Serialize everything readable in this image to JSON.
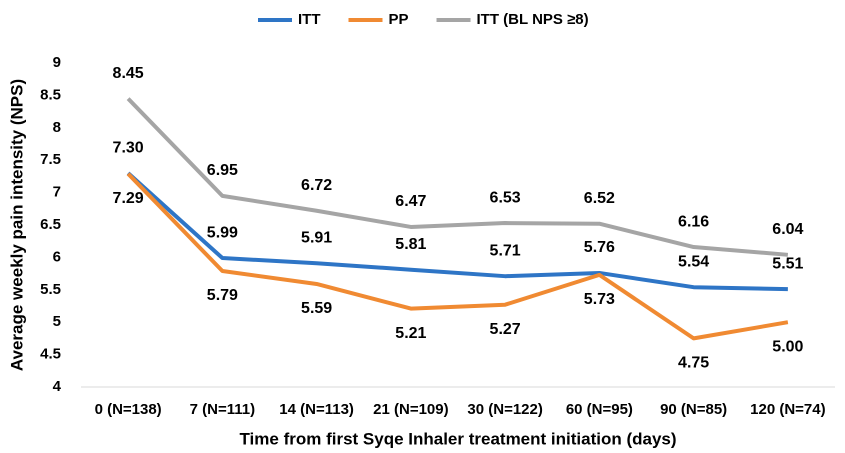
{
  "chart_data": {
    "type": "line",
    "categories": [
      "0 (N=138)",
      "7 (N=111)",
      "14 (N=113)",
      "21 (N=109)",
      "30 (N=122)",
      "60 (N=95)",
      "90 (N=85)",
      "120 (N=74)"
    ],
    "series": [
      {
        "name": "ITT",
        "color": "#2e75c6",
        "values": [
          7.3,
          5.99,
          5.91,
          5.81,
          5.71,
          5.76,
          5.54,
          5.51
        ],
        "value_labels": [
          "7.30",
          "5.99",
          "5.91",
          "5.81",
          "5.71",
          "5.76",
          "5.54",
          "5.51"
        ]
      },
      {
        "name": "PP",
        "color": "#f08a32",
        "values": [
          7.29,
          5.79,
          5.59,
          5.21,
          5.27,
          5.73,
          4.75,
          5.0
        ],
        "value_labels": [
          "7.29",
          "5.79",
          "5.59",
          "5.21",
          "5.27",
          "5.73",
          "4.75",
          "5.00"
        ]
      },
      {
        "name": "ITT (BL NPS ≥8)",
        "color": "#a5a5a5",
        "values": [
          8.45,
          6.95,
          6.72,
          6.47,
          6.53,
          6.52,
          6.16,
          6.04
        ],
        "value_labels": [
          "8.45",
          "6.95",
          "6.72",
          "6.47",
          "6.53",
          "6.52",
          "6.16",
          "6.04"
        ]
      }
    ],
    "xlabel": "Time from first Syqe Inhaler treatment initiation (days)",
    "ylabel": "Average weekly pain intensity (NPS)",
    "ylim": [
      4,
      9
    ],
    "yticks": [
      4,
      4.5,
      5,
      5.5,
      6,
      6.5,
      7,
      7.5,
      8,
      8.5,
      9
    ],
    "grid": false,
    "legend": "top"
  }
}
